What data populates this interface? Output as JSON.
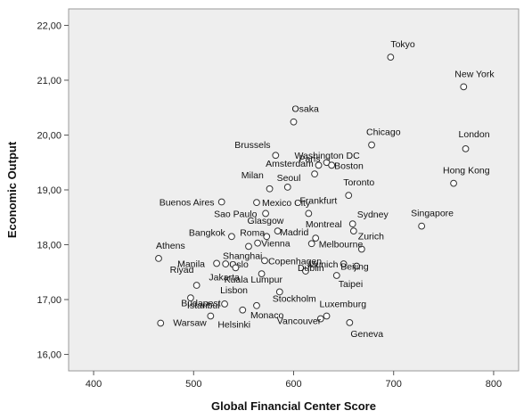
{
  "chart_data": {
    "type": "scatter",
    "title": "",
    "xlabel": "Global Financial Center Score",
    "ylabel": "Economic Output",
    "xlim": [
      375,
      825
    ],
    "ylim": [
      15.7,
      22.3
    ],
    "x_ticks": [
      400,
      500,
      600,
      700,
      800
    ],
    "x_tick_labels": [
      "400",
      "500",
      "600",
      "700",
      "800"
    ],
    "y_ticks": [
      16,
      17,
      18,
      19,
      20,
      21,
      22
    ],
    "y_tick_labels": [
      "16,00",
      "17,00",
      "18,00",
      "19,00",
      "20,00",
      "21,00",
      "22,00"
    ],
    "grid": false,
    "colors": {
      "plot_background": "#eeeeee",
      "page_background": "#ffffff",
      "marker_stroke": "#333333",
      "marker_fill": "#ffffff"
    },
    "points": [
      {
        "label": "Tokyo",
        "x": 697,
        "y": 21.42
      },
      {
        "label": "New York",
        "x": 770,
        "y": 20.88
      },
      {
        "label": "Osaka",
        "x": 600,
        "y": 20.24
      },
      {
        "label": "London",
        "x": 772,
        "y": 19.75
      },
      {
        "label": "Chicago",
        "x": 678,
        "y": 19.82
      },
      {
        "label": "Brussels",
        "x": 582,
        "y": 19.63
      },
      {
        "label": "Washington DC",
        "x": 633,
        "y": 19.5
      },
      {
        "label": "Paris",
        "x": 625,
        "y": 19.45
      },
      {
        "label": "Boston",
        "x": 638,
        "y": 19.45
      },
      {
        "label": "Amsterdam",
        "x": 621,
        "y": 19.29
      },
      {
        "label": "Hong Kong",
        "x": 760,
        "y": 19.12
      },
      {
        "label": "Milan",
        "x": 594,
        "y": 19.05
      },
      {
        "label": "Seoul",
        "x": 576,
        "y": 19.02
      },
      {
        "label": "Toronto",
        "x": 655,
        "y": 18.9
      },
      {
        "label": "Buenos Aires",
        "x": 528,
        "y": 18.78
      },
      {
        "label": "Mexico City",
        "x": 563,
        "y": 18.77
      },
      {
        "label": "Sao Paulo",
        "x": 572,
        "y": 18.57
      },
      {
        "label": "Frankfurt",
        "x": 615,
        "y": 18.57
      },
      {
        "label": "Singapore",
        "x": 728,
        "y": 18.34
      },
      {
        "label": "Sydney",
        "x": 659,
        "y": 18.38
      },
      {
        "label": "Glasgow",
        "x": 584,
        "y": 18.25
      },
      {
        "label": "Montreal",
        "x": 660,
        "y": 18.25
      },
      {
        "label": "Bangkok",
        "x": 538,
        "y": 18.15
      },
      {
        "label": "Roma",
        "x": 573,
        "y": 18.15
      },
      {
        "label": "Madrid",
        "x": 622,
        "y": 18.12
      },
      {
        "label": "Zurich",
        "x": 668,
        "y": 17.92
      },
      {
        "label": "Vienna",
        "x": 564,
        "y": 18.03
      },
      {
        "label": "Shanghai",
        "x": 555,
        "y": 17.97
      },
      {
        "label": "Athens",
        "x": 465,
        "y": 17.75
      },
      {
        "label": "Melbourne",
        "x": 618,
        "y": 18.02
      },
      {
        "label": "Copenhagen",
        "x": 571,
        "y": 17.71
      },
      {
        "label": "Manila",
        "x": 523,
        "y": 17.66
      },
      {
        "label": "Oslo",
        "x": 532,
        "y": 17.65
      },
      {
        "label": "Munich",
        "x": 650,
        "y": 17.65
      },
      {
        "label": "Beijing",
        "x": 663,
        "y": 17.61
      },
      {
        "label": "Riyad",
        "x": 503,
        "y": 17.26
      },
      {
        "label": "Jakarta",
        "x": 542,
        "y": 17.58
      },
      {
        "label": "Kuala Lumpur",
        "x": 568,
        "y": 17.47
      },
      {
        "label": "Dublin",
        "x": 612,
        "y": 17.52
      },
      {
        "label": "Taipei",
        "x": 643,
        "y": 17.44
      },
      {
        "label": "Lisbon",
        "x": 531,
        "y": 16.92
      },
      {
        "label": "Istanbul",
        "x": 497,
        "y": 17.03
      },
      {
        "label": "Stockholm",
        "x": 586,
        "y": 17.14
      },
      {
        "label": "Budapest",
        "x": 549,
        "y": 16.81
      },
      {
        "label": "Monaco",
        "x": 563,
        "y": 16.89
      },
      {
        "label": "Luxemburg",
        "x": 633,
        "y": 16.7
      },
      {
        "label": "Helsinki",
        "x": 517,
        "y": 16.7
      },
      {
        "label": "Vancouver",
        "x": 627,
        "y": 16.65
      },
      {
        "label": "Warsaw",
        "x": 467,
        "y": 16.57
      },
      {
        "label": "Geneva",
        "x": 656,
        "y": 16.58
      }
    ]
  }
}
